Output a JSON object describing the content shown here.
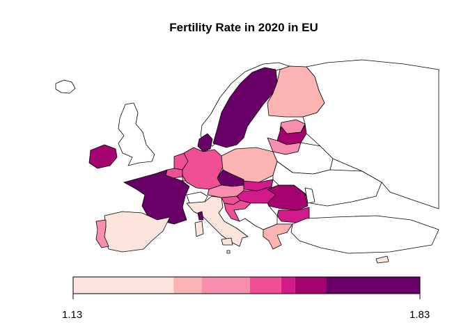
{
  "title": "Fertility Rate in 2020 in EU",
  "legend": {
    "min_label": "1.13",
    "max_label": "1.83",
    "bins": [
      {
        "color": "#fde5dd"
      },
      {
        "color": "#fbb4b2"
      },
      {
        "color": "#f68fad"
      },
      {
        "color": "#ef4f94"
      },
      {
        "color": "#d31a8a"
      },
      {
        "color": "#a4026f"
      },
      {
        "color": "#690067"
      }
    ]
  },
  "colors": {
    "nonEU": "#ffffff",
    "border": "#000000",
    "l1": "#fde5dd",
    "l2": "#fbb4b2",
    "l3": "#f68fad",
    "l4": "#ef4f94",
    "l5": "#d31a8a",
    "l6": "#a4026f",
    "l7": "#690067"
  },
  "regions": [
    {
      "name": "Iceland",
      "fill": "nonEU"
    },
    {
      "name": "Norway",
      "fill": "nonEU"
    },
    {
      "name": "United Kingdom",
      "fill": "nonEU"
    },
    {
      "name": "Ireland",
      "fill": "l6"
    },
    {
      "name": "Sweden",
      "fill": "l7"
    },
    {
      "name": "Finland",
      "fill": "l2"
    },
    {
      "name": "Estonia",
      "fill": "l3"
    },
    {
      "name": "Latvia",
      "fill": "l6"
    },
    {
      "name": "Lithuania",
      "fill": "l3"
    },
    {
      "name": "Denmark",
      "fill": "l7"
    },
    {
      "name": "Netherlands",
      "fill": "l4"
    },
    {
      "name": "Belgium",
      "fill": "l4"
    },
    {
      "name": "Luxembourg",
      "fill": "l3"
    },
    {
      "name": "Germany",
      "fill": "l4"
    },
    {
      "name": "Poland",
      "fill": "l2"
    },
    {
      "name": "Czechia",
      "fill": "l7"
    },
    {
      "name": "Slovakia",
      "fill": "l5"
    },
    {
      "name": "Austria",
      "fill": "l3"
    },
    {
      "name": "Hungary",
      "fill": "l5"
    },
    {
      "name": "Slovenia",
      "fill": "l4"
    },
    {
      "name": "Croatia",
      "fill": "l4"
    },
    {
      "name": "Romania",
      "fill": "l6"
    },
    {
      "name": "Bulgaria",
      "fill": "l5"
    },
    {
      "name": "France",
      "fill": "l7"
    },
    {
      "name": "Spain",
      "fill": "l1"
    },
    {
      "name": "Portugal",
      "fill": "l3"
    },
    {
      "name": "Italy",
      "fill": "l1"
    },
    {
      "name": "Sardinia",
      "fill": "l1"
    },
    {
      "name": "Corsica",
      "fill": "l7"
    },
    {
      "name": "Greece",
      "fill": "l2"
    },
    {
      "name": "Malta",
      "fill": "l1"
    },
    {
      "name": "Cyprus",
      "fill": "l1"
    },
    {
      "name": "Switzerland",
      "fill": "nonEU"
    },
    {
      "name": "Belarus",
      "fill": "nonEU"
    },
    {
      "name": "Ukraine",
      "fill": "nonEU"
    },
    {
      "name": "Moldova",
      "fill": "nonEU"
    },
    {
      "name": "Balkans",
      "fill": "nonEU"
    },
    {
      "name": "Turkey",
      "fill": "nonEU"
    },
    {
      "name": "Russia",
      "fill": "nonEU"
    }
  ]
}
